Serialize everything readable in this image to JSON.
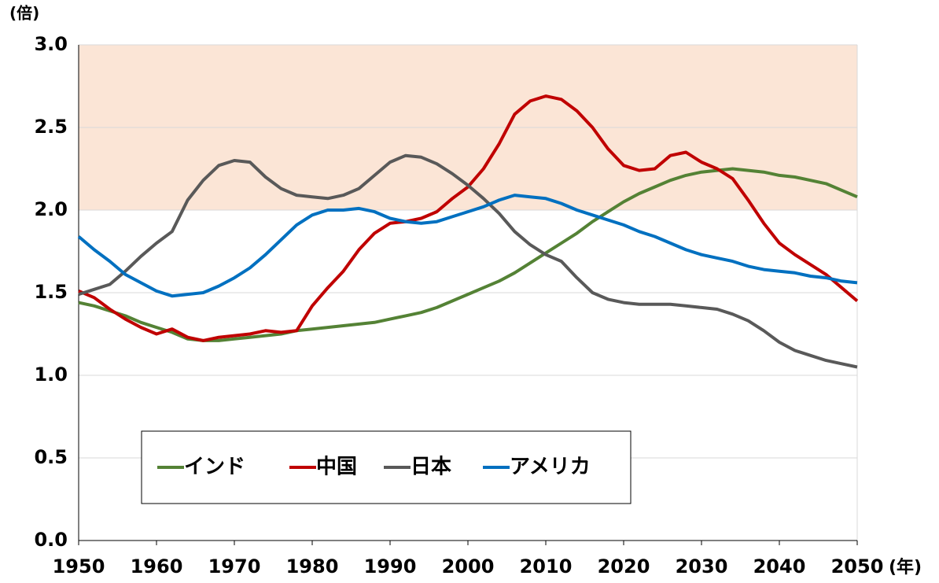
{
  "chart_data": {
    "type": "line",
    "y_unit": "(倍)",
    "x_unit": "(年)",
    "x": [
      1950,
      1952,
      1954,
      1956,
      1958,
      1960,
      1962,
      1964,
      1966,
      1968,
      1970,
      1972,
      1974,
      1976,
      1978,
      1980,
      1982,
      1984,
      1986,
      1988,
      1990,
      1992,
      1994,
      1996,
      1998,
      2000,
      2002,
      2004,
      2006,
      2008,
      2010,
      2012,
      2014,
      2016,
      2018,
      2020,
      2022,
      2024,
      2026,
      2028,
      2030,
      2032,
      2034,
      2036,
      2038,
      2040,
      2042,
      2044,
      2046,
      2048,
      2050
    ],
    "series": [
      {
        "name": "インド",
        "color": "#548235",
        "values": [
          1.44,
          1.42,
          1.39,
          1.36,
          1.32,
          1.29,
          1.26,
          1.22,
          1.21,
          1.21,
          1.22,
          1.23,
          1.24,
          1.25,
          1.27,
          1.28,
          1.29,
          1.3,
          1.31,
          1.32,
          1.34,
          1.36,
          1.38,
          1.41,
          1.45,
          1.49,
          1.53,
          1.57,
          1.62,
          1.68,
          1.74,
          1.8,
          1.86,
          1.93,
          1.99,
          2.05,
          2.1,
          2.14,
          2.18,
          2.21,
          2.23,
          2.24,
          2.25,
          2.24,
          2.23,
          2.21,
          2.2,
          2.18,
          2.16,
          2.12,
          2.08
        ]
      },
      {
        "name": "中国",
        "color": "#c00000",
        "values": [
          1.51,
          1.47,
          1.4,
          1.34,
          1.29,
          1.25,
          1.28,
          1.23,
          1.21,
          1.23,
          1.24,
          1.25,
          1.27,
          1.26,
          1.27,
          1.42,
          1.53,
          1.63,
          1.76,
          1.86,
          1.92,
          1.93,
          1.95,
          1.99,
          2.07,
          2.14,
          2.25,
          2.4,
          2.58,
          2.66,
          2.69,
          2.67,
          2.6,
          2.5,
          2.37,
          2.27,
          2.24,
          2.25,
          2.33,
          2.35,
          2.29,
          2.25,
          2.19,
          2.06,
          1.92,
          1.8,
          1.73,
          1.67,
          1.61,
          1.53,
          1.45
        ]
      },
      {
        "name": "日本",
        "color": "#595959",
        "values": [
          1.49,
          1.52,
          1.55,
          1.63,
          1.72,
          1.8,
          1.87,
          2.06,
          2.18,
          2.27,
          2.3,
          2.29,
          2.2,
          2.13,
          2.09,
          2.08,
          2.07,
          2.09,
          2.13,
          2.21,
          2.29,
          2.33,
          2.32,
          2.28,
          2.22,
          2.15,
          2.07,
          1.98,
          1.87,
          1.79,
          1.73,
          1.69,
          1.59,
          1.5,
          1.46,
          1.44,
          1.43,
          1.43,
          1.43,
          1.42,
          1.41,
          1.4,
          1.37,
          1.33,
          1.27,
          1.2,
          1.15,
          1.12,
          1.09,
          1.07,
          1.05
        ]
      },
      {
        "name": "アメリカ",
        "color": "#0070c0",
        "values": [
          1.84,
          1.76,
          1.69,
          1.61,
          1.56,
          1.51,
          1.48,
          1.49,
          1.5,
          1.54,
          1.59,
          1.65,
          1.73,
          1.82,
          1.91,
          1.97,
          2.0,
          2.0,
          2.01,
          1.99,
          1.95,
          1.93,
          1.92,
          1.93,
          1.96,
          1.99,
          2.02,
          2.06,
          2.09,
          2.08,
          2.07,
          2.04,
          2.0,
          1.97,
          1.94,
          1.91,
          1.87,
          1.84,
          1.8,
          1.76,
          1.73,
          1.71,
          1.69,
          1.66,
          1.64,
          1.63,
          1.62,
          1.6,
          1.59,
          1.57,
          1.56
        ]
      }
    ],
    "xlim": [
      1950,
      2050
    ],
    "xticks": [
      1950,
      1960,
      1970,
      1980,
      1990,
      2000,
      2010,
      2020,
      2030,
      2040,
      2050
    ],
    "ylim": [
      0,
      3
    ],
    "yticks": [
      {
        "value": 0,
        "label": "0.0"
      },
      0.5,
      {
        "value": 1,
        "label": "1.0"
      },
      1.5,
      {
        "value": 2,
        "label": "2.0"
      },
      2.5,
      {
        "value": 3,
        "label": "3.0"
      }
    ],
    "shaded_range": [
      2,
      3
    ],
    "shade_color": "#fbe5d6",
    "grid": true
  }
}
